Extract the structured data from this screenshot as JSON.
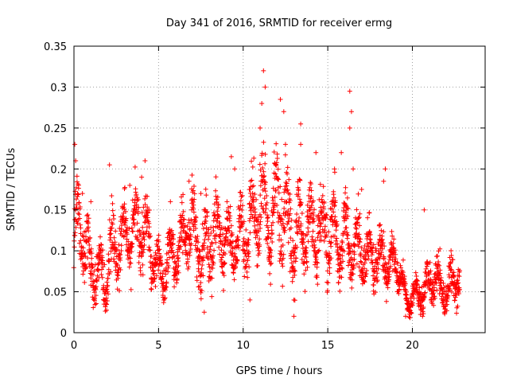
{
  "chart_data": {
    "type": "scatter",
    "title": "Day 341 of 2016, SRMTID for receiver ermg",
    "xlabel": "GPS time / hours",
    "ylabel": "SRMTID / TECUs",
    "xlim": [
      0,
      24.3
    ],
    "ylim": [
      0,
      0.35
    ],
    "xticks": [
      0,
      5,
      10,
      15,
      20
    ],
    "xtick_labels": [
      "0",
      "5",
      "10",
      "15",
      "20"
    ],
    "yticks": [
      0,
      0.05,
      0.1,
      0.15,
      0.2,
      0.25,
      0.3,
      0.35
    ],
    "ytick_labels": [
      "0",
      "0.05",
      "0.1",
      "0.15",
      "0.2",
      "0.25",
      "0.3",
      "0.35"
    ],
    "grid": true,
    "marker": "+",
    "series": [
      {
        "name": "SRMTID",
        "color": "#ff0000",
        "profile": [
          {
            "x": 0.0,
            "y": 0.11,
            "spread": 0.03
          },
          {
            "x": 0.3,
            "y": 0.14,
            "spread": 0.035
          },
          {
            "x": 1.0,
            "y": 0.075,
            "spread": 0.025
          },
          {
            "x": 1.8,
            "y": 0.07,
            "spread": 0.025
          },
          {
            "x": 2.2,
            "y": 0.1,
            "spread": 0.03
          },
          {
            "x": 3.0,
            "y": 0.12,
            "spread": 0.03
          },
          {
            "x": 4.0,
            "y": 0.13,
            "spread": 0.035
          },
          {
            "x": 4.6,
            "y": 0.1,
            "spread": 0.025
          },
          {
            "x": 5.2,
            "y": 0.07,
            "spread": 0.02
          },
          {
            "x": 6.0,
            "y": 0.1,
            "spread": 0.03
          },
          {
            "x": 6.8,
            "y": 0.13,
            "spread": 0.03
          },
          {
            "x": 7.5,
            "y": 0.1,
            "spread": 0.035
          },
          {
            "x": 8.5,
            "y": 0.12,
            "spread": 0.03
          },
          {
            "x": 9.5,
            "y": 0.11,
            "spread": 0.03
          },
          {
            "x": 10.3,
            "y": 0.12,
            "spread": 0.035
          },
          {
            "x": 11.0,
            "y": 0.16,
            "spread": 0.045
          },
          {
            "x": 11.6,
            "y": 0.14,
            "spread": 0.04
          },
          {
            "x": 12.3,
            "y": 0.16,
            "spread": 0.045
          },
          {
            "x": 13.0,
            "y": 0.11,
            "spread": 0.035
          },
          {
            "x": 14.0,
            "y": 0.13,
            "spread": 0.035
          },
          {
            "x": 15.0,
            "y": 0.12,
            "spread": 0.035
          },
          {
            "x": 16.0,
            "y": 0.11,
            "spread": 0.03
          },
          {
            "x": 17.0,
            "y": 0.1,
            "spread": 0.03
          },
          {
            "x": 18.0,
            "y": 0.09,
            "spread": 0.025
          },
          {
            "x": 19.2,
            "y": 0.08,
            "spread": 0.02
          },
          {
            "x": 19.6,
            "y": 0.04,
            "spread": 0.012
          },
          {
            "x": 20.5,
            "y": 0.05,
            "spread": 0.015
          },
          {
            "x": 21.3,
            "y": 0.065,
            "spread": 0.02
          },
          {
            "x": 22.0,
            "y": 0.05,
            "spread": 0.018
          },
          {
            "x": 22.8,
            "y": 0.07,
            "spread": 0.02
          }
        ],
        "peaks": [
          [
            0.05,
            0.23
          ],
          [
            0.1,
            0.21
          ],
          [
            1.0,
            0.16
          ],
          [
            2.1,
            0.205
          ],
          [
            3.3,
            0.18
          ],
          [
            4.2,
            0.21
          ],
          [
            4.0,
            0.19
          ],
          [
            5.7,
            0.16
          ],
          [
            6.8,
            0.185
          ],
          [
            7.5,
            0.17
          ],
          [
            9.3,
            0.215
          ],
          [
            9.5,
            0.2
          ],
          [
            10.4,
            0.175
          ],
          [
            11.0,
            0.25
          ],
          [
            11.2,
            0.32
          ],
          [
            11.3,
            0.3
          ],
          [
            11.1,
            0.28
          ],
          [
            12.2,
            0.285
          ],
          [
            12.4,
            0.27
          ],
          [
            12.5,
            0.23
          ],
          [
            13.4,
            0.255
          ],
          [
            13.4,
            0.23
          ],
          [
            14.3,
            0.22
          ],
          [
            15.4,
            0.2
          ],
          [
            15.8,
            0.22
          ],
          [
            16.3,
            0.295
          ],
          [
            16.4,
            0.27
          ],
          [
            16.3,
            0.25
          ],
          [
            16.5,
            0.2
          ],
          [
            18.4,
            0.2
          ],
          [
            18.3,
            0.185
          ],
          [
            20.7,
            0.15
          ],
          [
            13.0,
            0.02
          ],
          [
            13.0,
            0.04
          ],
          [
            7.7,
            0.025
          ],
          [
            10.4,
            0.04
          ],
          [
            19.6,
            0.02
          ],
          [
            20.6,
            0.02
          ],
          [
            0.5,
            0.17
          ],
          [
            17.0,
            0.175
          ]
        ]
      }
    ]
  }
}
